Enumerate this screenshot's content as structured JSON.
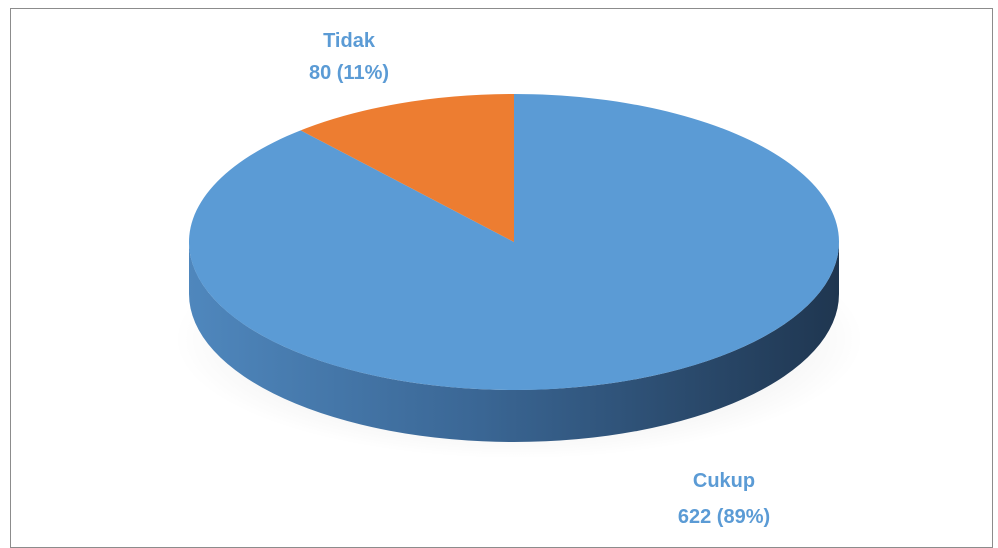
{
  "chart_data": {
    "type": "pie",
    "style": "3d",
    "slices": [
      {
        "label": "Cukup",
        "value": 622,
        "percent": "89%",
        "color": "#5b9bd5",
        "side_dark": "#25415f"
      },
      {
        "label": "Tidak",
        "value": 80,
        "percent": "11%",
        "color": "#ed7d31",
        "side_dark": "#8a4515"
      }
    ],
    "label_color": "#5b9bd5",
    "legend": "none"
  }
}
